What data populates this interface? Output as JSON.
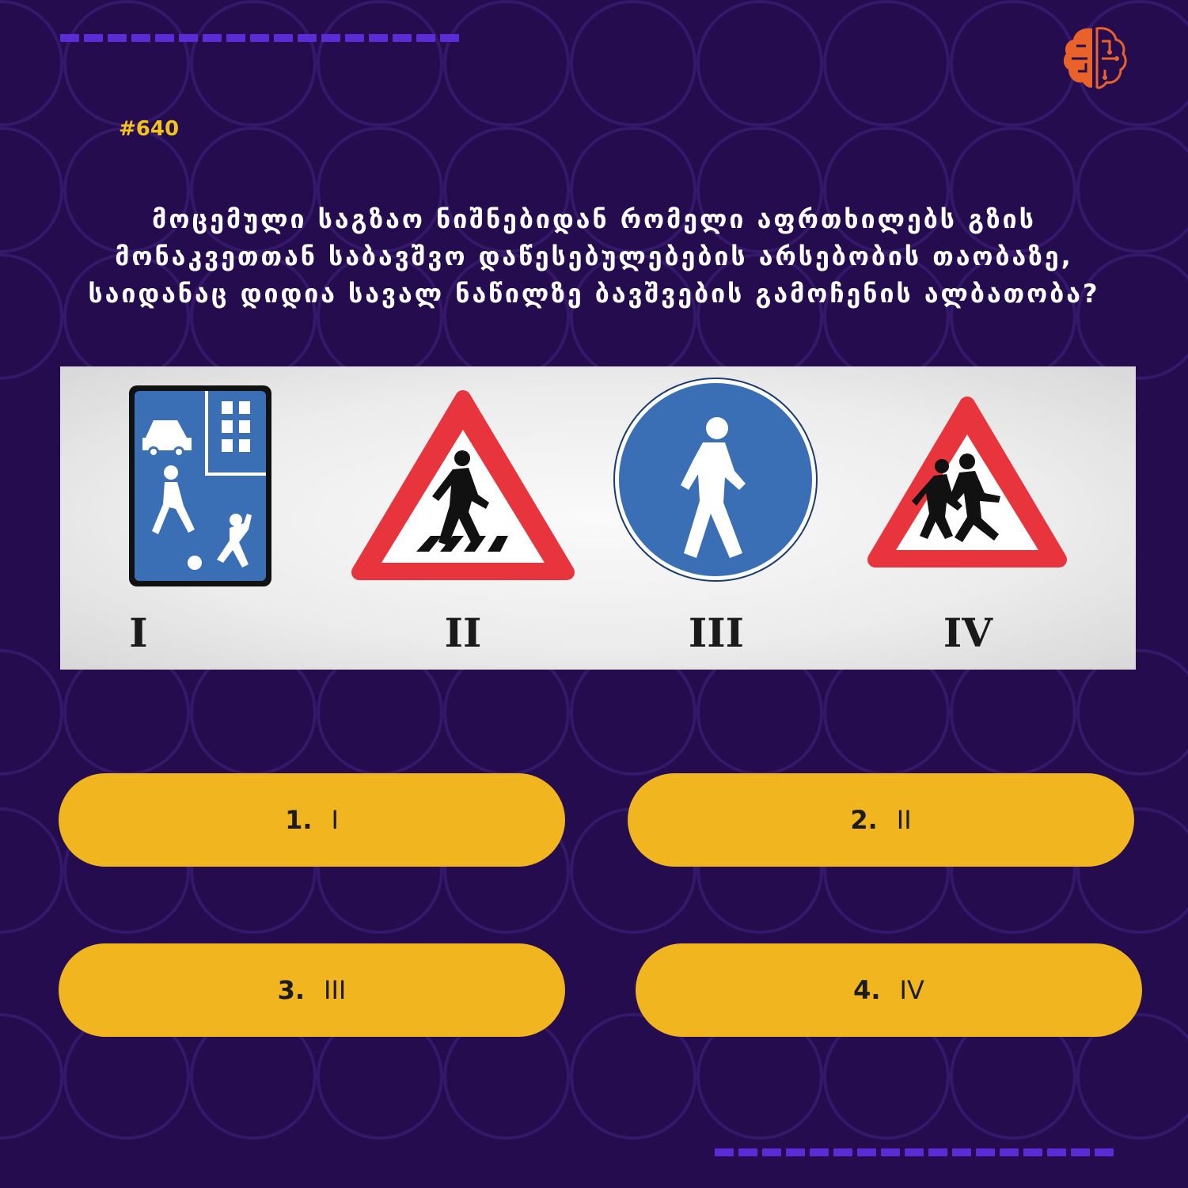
{
  "quiz": {
    "number": "#640",
    "question_lines": [
      "მოცემული საგზაო ნიშნებიდან რომელი აფრთხილებს გზის",
      "მონაკვეთთან საბავშვო დაწესებულებების არსებობის თაობაზე,",
      "საიდანაც დიდია სავალ ნაწილზე ბავშვების გამოჩენის ალბათობა?"
    ]
  },
  "signs": [
    {
      "numeral": "I",
      "icon": "living-zone-sign-icon"
    },
    {
      "numeral": "II",
      "icon": "pedestrian-crossing-warning-icon"
    },
    {
      "numeral": "III",
      "icon": "pedestrian-path-sign-icon"
    },
    {
      "numeral": "IV",
      "icon": "children-warning-icon"
    }
  ],
  "answers": [
    {
      "num": "1.",
      "label": "I"
    },
    {
      "num": "2.",
      "label": "II"
    },
    {
      "num": "3.",
      "label": "III"
    },
    {
      "num": "4.",
      "label": "IV"
    }
  ],
  "colors": {
    "background": "#240c4f",
    "accent_yellow": "#f0b51f",
    "dash_purple": "#5b2bd6",
    "logo_orange": "#e8622a",
    "sign_red": "#e8343c",
    "sign_blue": "#3a6fb5"
  }
}
